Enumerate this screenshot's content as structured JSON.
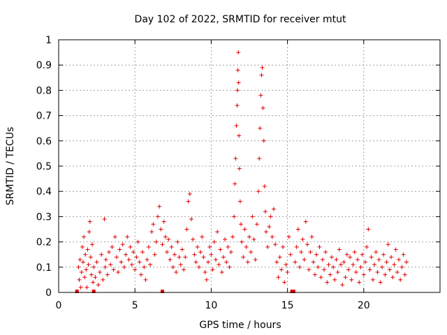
{
  "chart_data": {
    "type": "scatter",
    "title": "Day 102 of 2022, SRMTID for receiver mtut",
    "xlabel": "GPS time / hours",
    "ylabel": "SRMTID / TECUs",
    "xlim": [
      0,
      25
    ],
    "ylim": [
      0,
      1
    ],
    "x_ticks": [
      0,
      5,
      10,
      15,
      20
    ],
    "x_tick_labels": [
      "0",
      "5",
      "10",
      "15",
      "20"
    ],
    "y_ticks": [
      0,
      0.1,
      0.2,
      0.3,
      0.4,
      0.5,
      0.6,
      0.7,
      0.8,
      0.9,
      1
    ],
    "y_tick_labels": [
      "0",
      "0.1",
      "0.2",
      "0.3",
      "0.4",
      "0.5",
      "0.6",
      "0.7",
      "0.8",
      "0.9",
      "1"
    ],
    "grid": true,
    "marker": "plus",
    "color": "#e00000",
    "bars": [
      {
        "x": 1.2,
        "y": 0
      },
      {
        "x": 2.3,
        "y": 0
      },
      {
        "x": 6.8,
        "y": 0
      },
      {
        "x": 15.3,
        "y": 0
      },
      {
        "x": 15.4,
        "y": 0
      }
    ],
    "points": [
      [
        1.3,
        0.1
      ],
      [
        1.35,
        0.05
      ],
      [
        1.4,
        0.13
      ],
      [
        1.45,
        0.02
      ],
      [
        1.5,
        0.08
      ],
      [
        1.55,
        0.18
      ],
      [
        1.6,
        0.12
      ],
      [
        1.65,
        0.22
      ],
      [
        1.7,
        0.06
      ],
      [
        1.75,
        0.15
      ],
      [
        1.8,
        0.09
      ],
      [
        1.85,
        0.02
      ],
      [
        1.9,
        0.17
      ],
      [
        1.95,
        0.11
      ],
      [
        2.0,
        0.24
      ],
      [
        2.05,
        0.28
      ],
      [
        2.1,
        0.14
      ],
      [
        2.15,
        0.07
      ],
      [
        2.2,
        0.19
      ],
      [
        2.25,
        0.04
      ],
      [
        2.3,
        0.1
      ],
      [
        2.4,
        0.06
      ],
      [
        2.5,
        0.12
      ],
      [
        2.6,
        0.03
      ],
      [
        2.7,
        0.08
      ],
      [
        2.8,
        0.15
      ],
      [
        2.9,
        0.05
      ],
      [
        3.0,
        0.29
      ],
      [
        3.05,
        0.1
      ],
      [
        3.1,
        0.13
      ],
      [
        3.2,
        0.07
      ],
      [
        3.3,
        0.16
      ],
      [
        3.4,
        0.11
      ],
      [
        3.5,
        0.18
      ],
      [
        3.6,
        0.09
      ],
      [
        3.7,
        0.22
      ],
      [
        3.8,
        0.14
      ],
      [
        3.9,
        0.08
      ],
      [
        4.0,
        0.17
      ],
      [
        4.1,
        0.12
      ],
      [
        4.2,
        0.19
      ],
      [
        4.3,
        0.1
      ],
      [
        4.4,
        0.15
      ],
      [
        4.5,
        0.22
      ],
      [
        4.6,
        0.13
      ],
      [
        4.7,
        0.18
      ],
      [
        4.8,
        0.11
      ],
      [
        4.9,
        0.16
      ],
      [
        5.0,
        0.09
      ],
      [
        5.1,
        0.14
      ],
      [
        5.2,
        0.2
      ],
      [
        5.3,
        0.12
      ],
      [
        5.4,
        0.07
      ],
      [
        5.5,
        0.16
      ],
      [
        5.6,
        0.1
      ],
      [
        5.7,
        0.05
      ],
      [
        5.8,
        0.13
      ],
      [
        5.9,
        0.18
      ],
      [
        6.0,
        0.11
      ],
      [
        6.1,
        0.24
      ],
      [
        6.2,
        0.27
      ],
      [
        6.3,
        0.15
      ],
      [
        6.4,
        0.2
      ],
      [
        6.5,
        0.3
      ],
      [
        6.6,
        0.34
      ],
      [
        6.7,
        0.25
      ],
      [
        6.8,
        0.19
      ],
      [
        6.9,
        0.28
      ],
      [
        7.0,
        0.22
      ],
      [
        7.1,
        0.16
      ],
      [
        7.2,
        0.21
      ],
      [
        7.3,
        0.13
      ],
      [
        7.4,
        0.18
      ],
      [
        7.5,
        0.1
      ],
      [
        7.6,
        0.15
      ],
      [
        7.7,
        0.08
      ],
      [
        7.8,
        0.2
      ],
      [
        7.9,
        0.14
      ],
      [
        8.0,
        0.11
      ],
      [
        8.1,
        0.17
      ],
      [
        8.2,
        0.09
      ],
      [
        8.3,
        0.14
      ],
      [
        8.4,
        0.25
      ],
      [
        8.5,
        0.36
      ],
      [
        8.6,
        0.39
      ],
      [
        8.7,
        0.29
      ],
      [
        8.8,
        0.21
      ],
      [
        8.9,
        0.15
      ],
      [
        9.0,
        0.12
      ],
      [
        9.1,
        0.18
      ],
      [
        9.2,
        0.1
      ],
      [
        9.3,
        0.16
      ],
      [
        9.4,
        0.22
      ],
      [
        9.5,
        0.14
      ],
      [
        9.6,
        0.08
      ],
      [
        9.7,
        0.05
      ],
      [
        9.8,
        0.12
      ],
      [
        9.9,
        0.18
      ],
      [
        10.0,
        0.15
      ],
      [
        10.1,
        0.09
      ],
      [
        10.2,
        0.2
      ],
      [
        10.3,
        0.13
      ],
      [
        10.4,
        0.24
      ],
      [
        10.5,
        0.11
      ],
      [
        10.6,
        0.17
      ],
      [
        10.7,
        0.08
      ],
      [
        10.8,
        0.14
      ],
      [
        10.9,
        0.21
      ],
      [
        11.0,
        0.12
      ],
      [
        11.1,
        0.18
      ],
      [
        11.2,
        0.1
      ],
      [
        11.3,
        0.16
      ],
      [
        11.4,
        0.22
      ],
      [
        11.5,
        0.3
      ],
      [
        11.55,
        0.43
      ],
      [
        11.6,
        0.53
      ],
      [
        11.65,
        0.66
      ],
      [
        11.7,
        0.74
      ],
      [
        11.72,
        0.8
      ],
      [
        11.75,
        0.88
      ],
      [
        11.78,
        0.95
      ],
      [
        11.8,
        0.83
      ],
      [
        11.82,
        0.62
      ],
      [
        11.85,
        0.49
      ],
      [
        11.9,
        0.36
      ],
      [
        11.95,
        0.27
      ],
      [
        12.0,
        0.2
      ],
      [
        12.1,
        0.14
      ],
      [
        12.2,
        0.25
      ],
      [
        12.3,
        0.18
      ],
      [
        12.4,
        0.12
      ],
      [
        12.5,
        0.22
      ],
      [
        12.6,
        0.16
      ],
      [
        12.7,
        0.3
      ],
      [
        12.8,
        0.21
      ],
      [
        12.9,
        0.13
      ],
      [
        13.0,
        0.27
      ],
      [
        13.1,
        0.4
      ],
      [
        13.15,
        0.53
      ],
      [
        13.2,
        0.65
      ],
      [
        13.25,
        0.78
      ],
      [
        13.3,
        0.86
      ],
      [
        13.35,
        0.89
      ],
      [
        13.4,
        0.73
      ],
      [
        13.45,
        0.6
      ],
      [
        13.5,
        0.42
      ],
      [
        13.55,
        0.32
      ],
      [
        13.6,
        0.24
      ],
      [
        13.7,
        0.18
      ],
      [
        13.8,
        0.26
      ],
      [
        13.9,
        0.3
      ],
      [
        14.0,
        0.22
      ],
      [
        14.1,
        0.33
      ],
      [
        14.2,
        0.19
      ],
      [
        14.3,
        0.12
      ],
      [
        14.4,
        0.06
      ],
      [
        14.5,
        0.14
      ],
      [
        14.6,
        0.09
      ],
      [
        14.7,
        0.18
      ],
      [
        14.8,
        0.04
      ],
      [
        14.9,
        0.11
      ],
      [
        15.0,
        0.08
      ],
      [
        15.1,
        0.22
      ],
      [
        15.2,
        0.15
      ],
      [
        15.5,
        0.12
      ],
      [
        15.6,
        0.18
      ],
      [
        15.7,
        0.25
      ],
      [
        15.8,
        0.1
      ],
      [
        15.9,
        0.16
      ],
      [
        16.0,
        0.21
      ],
      [
        16.1,
        0.13
      ],
      [
        16.2,
        0.28
      ],
      [
        16.3,
        0.19
      ],
      [
        16.4,
        0.09
      ],
      [
        16.5,
        0.16
      ],
      [
        16.6,
        0.22
      ],
      [
        16.7,
        0.12
      ],
      [
        16.8,
        0.07
      ],
      [
        16.9,
        0.15
      ],
      [
        17.0,
        0.1
      ],
      [
        17.1,
        0.18
      ],
      [
        17.2,
        0.06
      ],
      [
        17.3,
        0.13
      ],
      [
        17.4,
        0.09
      ],
      [
        17.5,
        0.16
      ],
      [
        17.6,
        0.04
      ],
      [
        17.7,
        0.11
      ],
      [
        17.8,
        0.07
      ],
      [
        17.9,
        0.14
      ],
      [
        18.0,
        0.1
      ],
      [
        18.1,
        0.05
      ],
      [
        18.2,
        0.13
      ],
      [
        18.3,
        0.08
      ],
      [
        18.4,
        0.17
      ],
      [
        18.5,
        0.11
      ],
      [
        18.6,
        0.03
      ],
      [
        18.7,
        0.12
      ],
      [
        18.8,
        0.06
      ],
      [
        18.9,
        0.15
      ],
      [
        19.0,
        0.09
      ],
      [
        19.1,
        0.14
      ],
      [
        19.2,
        0.05
      ],
      [
        19.3,
        0.11
      ],
      [
        19.4,
        0.16
      ],
      [
        19.5,
        0.08
      ],
      [
        19.6,
        0.13
      ],
      [
        19.7,
        0.04
      ],
      [
        19.8,
        0.1
      ],
      [
        19.9,
        0.15
      ],
      [
        20.0,
        0.07
      ],
      [
        20.1,
        0.12
      ],
      [
        20.2,
        0.18
      ],
      [
        20.3,
        0.25
      ],
      [
        20.4,
        0.09
      ],
      [
        20.5,
        0.14
      ],
      [
        20.6,
        0.05
      ],
      [
        20.7,
        0.11
      ],
      [
        20.8,
        0.16
      ],
      [
        20.9,
        0.08
      ],
      [
        21.0,
        0.13
      ],
      [
        21.1,
        0.04
      ],
      [
        21.2,
        0.1
      ],
      [
        21.3,
        0.15
      ],
      [
        21.4,
        0.07
      ],
      [
        21.5,
        0.12
      ],
      [
        21.6,
        0.19
      ],
      [
        21.7,
        0.09
      ],
      [
        21.8,
        0.14
      ],
      [
        21.9,
        0.06
      ],
      [
        22.0,
        0.11
      ],
      [
        22.1,
        0.17
      ],
      [
        22.2,
        0.08
      ],
      [
        22.3,
        0.13
      ],
      [
        22.4,
        0.05
      ],
      [
        22.5,
        0.1
      ],
      [
        22.6,
        0.15
      ],
      [
        22.7,
        0.07
      ],
      [
        22.8,
        0.12
      ]
    ]
  }
}
